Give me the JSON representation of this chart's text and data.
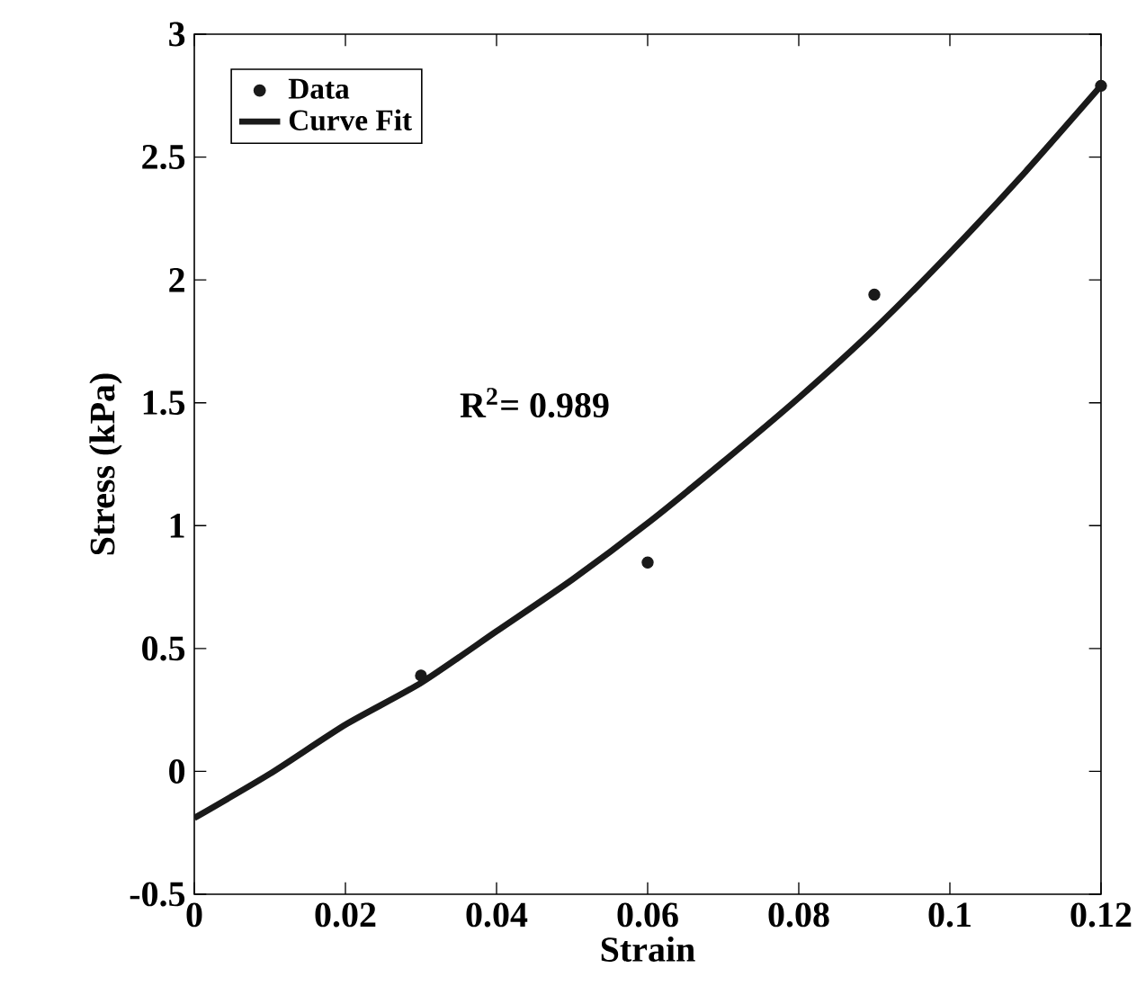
{
  "chart_data": {
    "type": "scatter",
    "xlabel": "Strain",
    "ylabel": "Stress (kPa)",
    "annotations": [
      "R$^{2}$= 0.989"
    ],
    "xlim": [
      0,
      0.12
    ],
    "ylim": [
      -0.5,
      3
    ],
    "xticks": [
      0,
      0.02,
      0.04,
      0.06,
      0.08,
      0.1,
      0.12
    ],
    "yticks": [
      -0.5,
      0,
      0.5,
      1,
      1.5,
      2,
      2.5,
      3
    ],
    "legend": "top left",
    "grid": false,
    "series": [
      {
        "name": "Data",
        "marker": "circle",
        "color": "#1a1a1a",
        "x": [
          0.03,
          0.06,
          0.09,
          0.12
        ],
        "values": [
          0.39,
          0.85,
          1.94,
          2.79
        ]
      },
      {
        "name": "Curve Fit",
        "type": "line",
        "marker": "none",
        "line_style": "solid",
        "color": "#1a1a1a",
        "x": [
          0,
          0.01,
          0.02,
          0.03,
          0.04,
          0.05,
          0.06,
          0.07,
          0.08,
          0.09,
          0.1,
          0.11,
          0.12
        ],
        "values": [
          -0.19,
          -0.01,
          0.19,
          0.36,
          0.57,
          0.78,
          1.01,
          1.26,
          1.52,
          1.8,
          2.11,
          2.44,
          2.79
        ]
      }
    ]
  }
}
